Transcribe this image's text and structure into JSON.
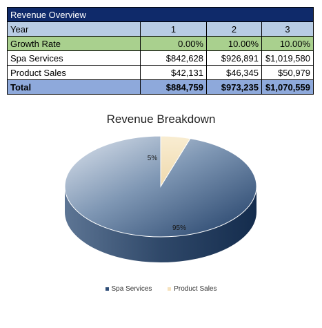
{
  "table": {
    "title": "Revenue Overview",
    "year_label": "Year",
    "years": [
      "1",
      "2",
      "3"
    ],
    "rows": [
      {
        "label": "Growth Rate",
        "values": [
          "0.00%",
          "10.00%",
          "10.00%"
        ]
      },
      {
        "label": "Spa Services",
        "values": [
          "$842,628",
          "$926,891",
          "$1,019,580"
        ]
      },
      {
        "label": "Product Sales",
        "values": [
          "$42,131",
          "$46,345",
          "$50,979"
        ]
      }
    ],
    "total": {
      "label": "Total",
      "values": [
        "$884,759",
        "$973,235",
        "$1,070,559"
      ]
    }
  },
  "chart_data": {
    "type": "pie",
    "title": "Revenue Breakdown",
    "labels": [
      "Spa Services",
      "Product Sales"
    ],
    "values": [
      95,
      5
    ],
    "value_labels": [
      "95%",
      "5%"
    ],
    "colors": [
      "#2f4e78",
      "#f6e2bd"
    ],
    "legend_position": "bottom"
  }
}
